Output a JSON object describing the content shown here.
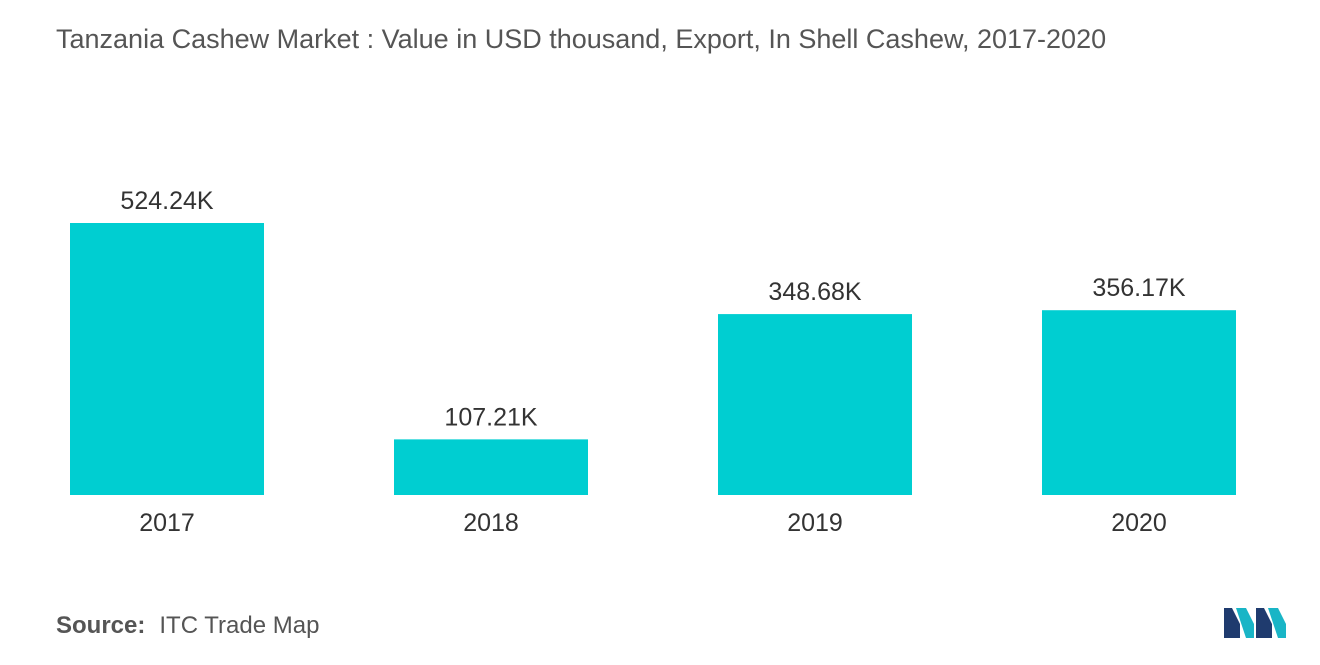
{
  "title": "Tanzania Cashew Market : Value in USD thousand, Export, In Shell Cashew, 2017-2020",
  "source": {
    "label": "Source:",
    "value": "ITC Trade Map"
  },
  "colors": {
    "bar": "#00CED1",
    "text": "#333333",
    "muted": "#555555"
  },
  "chart_data": {
    "type": "bar",
    "title": "Tanzania Cashew Market : Value in USD thousand, Export, In Shell Cashew, 2017-2020",
    "categories": [
      "2017",
      "2018",
      "2019",
      "2020"
    ],
    "values": [
      524.24,
      107.21,
      348.68,
      356.17
    ],
    "data_labels": [
      "524.24K",
      "107.21K",
      "348.68K",
      "356.17K"
    ],
    "xlabel": "",
    "ylabel": "",
    "ylim": [
      0,
      524.24
    ],
    "grid": false,
    "legend": "none"
  }
}
